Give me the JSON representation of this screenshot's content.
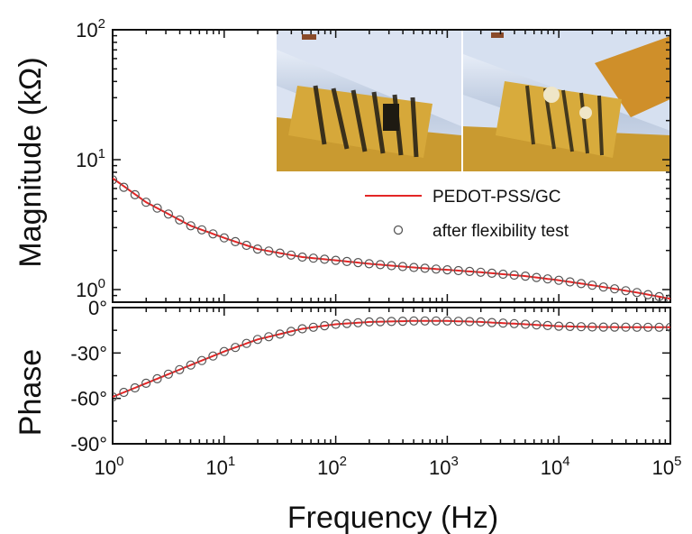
{
  "chart_data": [
    {
      "type": "line",
      "panel": "magnitude",
      "xscale": "log",
      "yscale": "log",
      "xlim": [
        1,
        100000
      ],
      "ylim": [
        0.8,
        100
      ],
      "ylabel": "Magnitude (kΩ)",
      "y_ticks": [
        {
          "value": 1,
          "base": "10",
          "exp": "0"
        },
        {
          "value": 10,
          "base": "10",
          "exp": "1"
        },
        {
          "value": 100,
          "base": "10",
          "exp": "2"
        }
      ],
      "legend": {
        "position": "right, middle"
      },
      "series": [
        {
          "name": "PEDOT-PSS/GC",
          "style": "line",
          "color": "#e32626",
          "x": [
            1,
            2,
            5,
            10,
            20,
            50,
            100,
            200,
            500,
            1000,
            2000,
            5000,
            10000,
            20000,
            50000,
            100000
          ],
          "y": [
            7.2,
            4.7,
            3.1,
            2.5,
            2.05,
            1.78,
            1.68,
            1.58,
            1.48,
            1.42,
            1.36,
            1.27,
            1.18,
            1.08,
            0.95,
            0.85
          ]
        },
        {
          "name": "after flexibility test",
          "style": "open-circles",
          "color": "#555555",
          "x": [
            1,
            2,
            5,
            10,
            20,
            50,
            100,
            200,
            500,
            1000,
            2000,
            5000,
            10000,
            20000,
            50000,
            100000
          ],
          "y": [
            7.0,
            4.7,
            3.1,
            2.5,
            2.05,
            1.78,
            1.68,
            1.58,
            1.48,
            1.42,
            1.36,
            1.27,
            1.18,
            1.08,
            0.95,
            0.85
          ]
        }
      ]
    },
    {
      "type": "line",
      "panel": "phase",
      "xscale": "log",
      "xlim": [
        1,
        100000
      ],
      "ylim": [
        -90,
        0
      ],
      "ylabel": "Phase",
      "xlabel": "Frequency (Hz)",
      "y_ticks": [
        {
          "value": 0,
          "label": "0°"
        },
        {
          "value": -30,
          "label": "-30°"
        },
        {
          "value": -60,
          "label": "-60°"
        },
        {
          "value": -90,
          "label": "-90°"
        }
      ],
      "x_ticks": [
        {
          "value": 1,
          "base": "10",
          "exp": "0"
        },
        {
          "value": 10,
          "base": "10",
          "exp": "1"
        },
        {
          "value": 100,
          "base": "10",
          "exp": "2"
        },
        {
          "value": 1000,
          "base": "10",
          "exp": "3"
        },
        {
          "value": 10000,
          "base": "10",
          "exp": "4"
        },
        {
          "value": 100000,
          "base": "10",
          "exp": "5"
        }
      ],
      "series": [
        {
          "name": "PEDOT-PSS/GC",
          "style": "line",
          "color": "#e32626",
          "x": [
            1,
            2,
            5,
            10,
            20,
            50,
            100,
            200,
            500,
            1000,
            2000,
            5000,
            10000,
            20000,
            50000,
            100000
          ],
          "y": [
            -59,
            -50,
            -38,
            -29,
            -21,
            -14,
            -11,
            -9.5,
            -8.8,
            -8.8,
            -9.5,
            -11,
            -12.3,
            -12.8,
            -13,
            -13
          ]
        },
        {
          "name": "after flexibility test",
          "style": "open-circles",
          "color": "#555555",
          "x": [
            1,
            2,
            5,
            10,
            20,
            50,
            100,
            200,
            500,
            1000,
            2000,
            5000,
            10000,
            20000,
            50000,
            100000
          ],
          "y": [
            -59,
            -50,
            -38,
            -29,
            -21,
            -14,
            -11,
            -9.5,
            -8.8,
            -8.8,
            -9.5,
            -11,
            -12.3,
            -12.8,
            -13,
            -13
          ]
        }
      ]
    }
  ],
  "inset": {
    "description_icon": "flexible-electrode-photo",
    "colors": {
      "kapton": "#c9962b",
      "tube": "#aebfd6",
      "background": "#d9e2f2",
      "traces": "#2a2418"
    }
  }
}
